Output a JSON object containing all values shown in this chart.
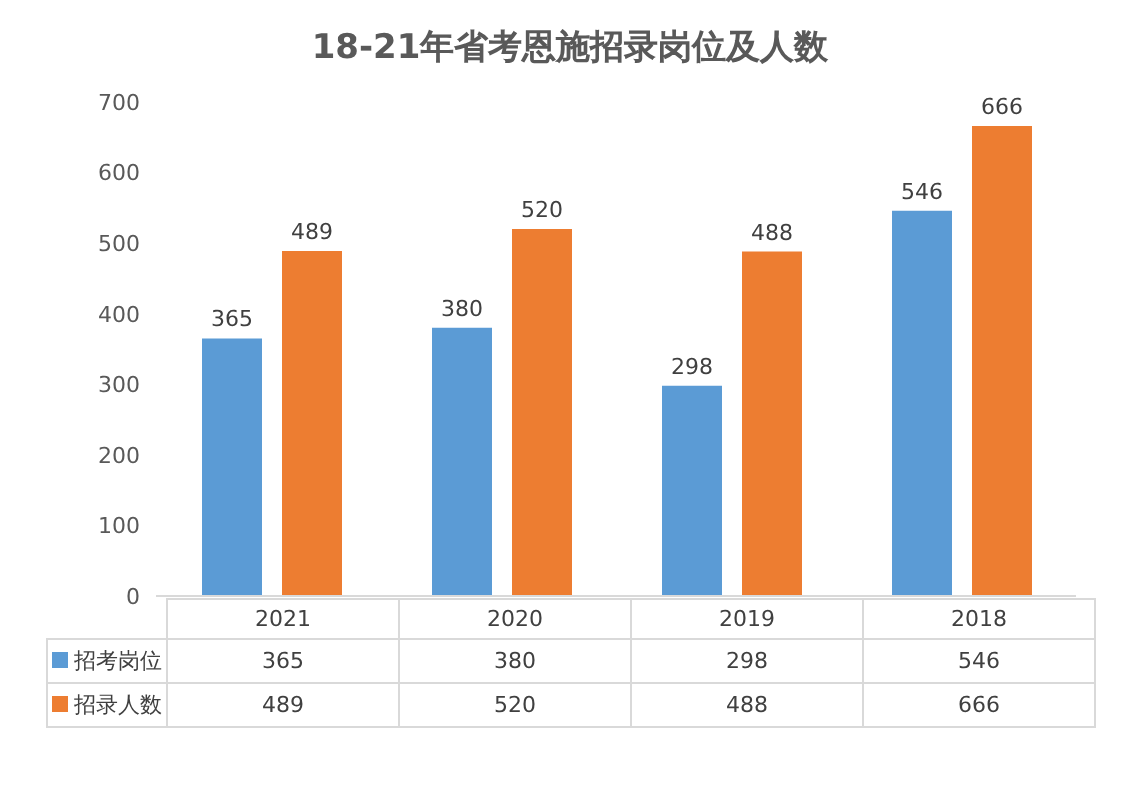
{
  "chart_data": {
    "type": "bar",
    "title": "18-21年省考恩施招录岗位及人数",
    "categories": [
      "2021",
      "2020",
      "2019",
      "2018"
    ],
    "series": [
      {
        "name": "招考岗位",
        "color": "#5b9bd5",
        "values": [
          365,
          380,
          298,
          546
        ]
      },
      {
        "name": "招录人数",
        "color": "#ed7d31",
        "values": [
          489,
          520,
          488,
          666
        ]
      }
    ],
    "annotations": [
      {
        "text": "365",
        "x": "2021",
        "y": 365
      },
      {
        "text": "380",
        "x": "2020",
        "y": 380
      },
      {
        "text": "298",
        "x": "2019",
        "y": 298
      },
      {
        "text": "546",
        "x": "2018",
        "y": 546
      },
      {
        "text": "489",
        "x": "2021",
        "y": 489
      },
      {
        "text": "520",
        "x": "2020",
        "y": 520
      },
      {
        "text": "488",
        "x": "2019",
        "y": 488
      },
      {
        "text": "666",
        "x": "2018",
        "y": 666
      }
    ],
    "ylim": [
      0,
      700
    ],
    "yticks": [
      0,
      100,
      200,
      300,
      400,
      500,
      600,
      700
    ],
    "grid": false,
    "data_labels": true,
    "legend": "bottom"
  }
}
